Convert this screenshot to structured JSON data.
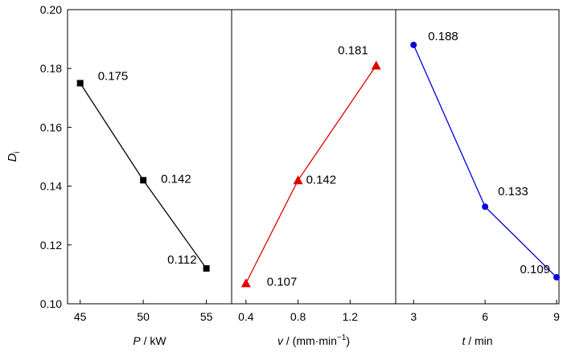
{
  "chart_data": [
    {
      "type": "line",
      "ylabel": "D",
      "ylabel_subscript": "i",
      "ylim": [
        0.1,
        0.2
      ],
      "y_ticks": [
        "0.10",
        "0.12",
        "0.14",
        "0.16",
        "0.18",
        "0.20"
      ],
      "xlabel": "P / kW",
      "xlabel_var": "P",
      "xlabel_unit": " / kW",
      "xlim": [
        44,
        57
      ],
      "x_ticks": [
        "45",
        "50",
        "55"
      ],
      "series": [
        {
          "color": "#000000",
          "marker": "square",
          "points": [
            {
              "x": 45,
              "y": 0.175,
              "label": "0.175"
            },
            {
              "x": 50,
              "y": 0.142,
              "label": "0.142"
            },
            {
              "x": 55,
              "y": 0.112,
              "label": "0.112"
            }
          ]
        }
      ]
    },
    {
      "type": "line",
      "xlabel": "v / (mm·min-1)",
      "xlabel_var": "v",
      "xlabel_unit_main": " / (mm·min",
      "xlabel_unit_sup": "−1",
      "xlabel_unit_close": ")",
      "xlim": [
        0.29,
        1.55
      ],
      "x_ticks": [
        "0.4",
        "0.8",
        "1.2"
      ],
      "series": [
        {
          "color": "#e00000",
          "marker": "triangle",
          "points": [
            {
              "x": 0.4,
              "y": 0.107,
              "label": "0.107"
            },
            {
              "x": 0.8,
              "y": 0.142,
              "label": "0.142"
            },
            {
              "x": 1.4,
              "y": 0.181,
              "label": "0.181"
            }
          ]
        }
      ]
    },
    {
      "type": "line",
      "xlabel": "t / min",
      "xlabel_var": "t",
      "xlabel_unit": " / min",
      "xlim": [
        2.25,
        9.1
      ],
      "x_ticks": [
        "3",
        "6",
        "9"
      ],
      "series": [
        {
          "color": "#0000dd",
          "marker": "circle",
          "points": [
            {
              "x": 3,
              "y": 0.188,
              "label": "0.188"
            },
            {
              "x": 6,
              "y": 0.133,
              "label": "0.133"
            },
            {
              "x": 9,
              "y": 0.109,
              "label": "0.109"
            }
          ]
        }
      ]
    }
  ]
}
